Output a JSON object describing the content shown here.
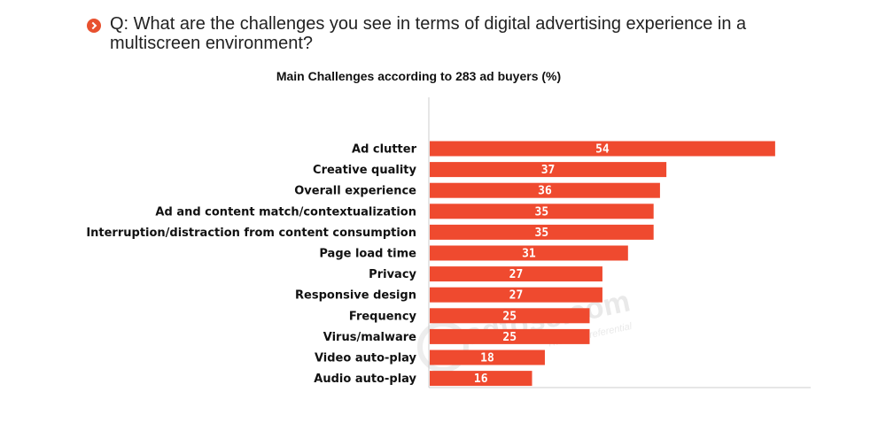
{
  "question": {
    "icon": "chevron-right-circle-icon",
    "text": "Q: What are the challenges you see in terms of digital advertising experience in a multiscreen environment?"
  },
  "watermark": {
    "brand": "adtose.com",
    "tagline": "There is preferential"
  },
  "colors": {
    "bar": "#ef4a2f",
    "axis": "#cccccc",
    "accent": "#e8512f"
  },
  "chart_data": {
    "type": "bar",
    "orientation": "horizontal",
    "title": "Main Challenges according to 283 ad buyers (%)",
    "xlabel": "",
    "ylabel": "",
    "xlim": [
      0,
      60
    ],
    "grid": false,
    "data_labels": true,
    "categories": [
      "Ad clutter",
      "Creative quality",
      "Overall experience",
      "Ad and content match/contextualization",
      "Interruption/distraction from content consumption",
      "Page load time",
      "Privacy",
      "Responsive design",
      "Frequency",
      "Virus/malware",
      "Video auto-play",
      "Audio auto-play"
    ],
    "values": [
      54,
      37,
      36,
      35,
      35,
      31,
      27,
      27,
      25,
      25,
      18,
      16
    ]
  }
}
